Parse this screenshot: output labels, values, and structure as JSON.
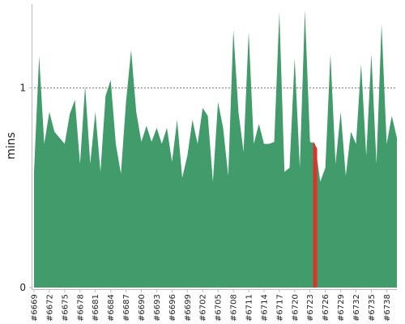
{
  "chart_data": {
    "type": "area",
    "title": "",
    "xlabel": "",
    "ylabel": "mins",
    "ylim": [
      0,
      1.4
    ],
    "yticks": [
      0,
      1
    ],
    "reference_line": {
      "value": 1,
      "style": "dotted",
      "color": "#777777"
    },
    "grid": false,
    "legend": "none",
    "colors": {
      "area": "#419b6b",
      "highlight": "#d9352b",
      "axis": "#bbbbbb",
      "tick_text": "#222222"
    },
    "x_categories": [
      "#6669",
      "#6670",
      "#6671",
      "#6672",
      "#6673",
      "#6674",
      "#6675",
      "#6676",
      "#6677",
      "#6678",
      "#6679",
      "#6680",
      "#6681",
      "#6682",
      "#6683",
      "#6684",
      "#6685",
      "#6686",
      "#6687",
      "#6688",
      "#6689",
      "#6690",
      "#6691",
      "#6692",
      "#6693",
      "#6694",
      "#6695",
      "#6696",
      "#6697",
      "#6698",
      "#6699",
      "#6700",
      "#6701",
      "#6702",
      "#6703",
      "#6704",
      "#6705",
      "#6706",
      "#6707",
      "#6708",
      "#6709",
      "#6710",
      "#6711",
      "#6712",
      "#6713",
      "#6714",
      "#6715",
      "#6716",
      "#6717",
      "#6718",
      "#6719",
      "#6720",
      "#6721",
      "#6722",
      "#6723",
      "#6724",
      "#6725",
      "#6726",
      "#6727",
      "#6728",
      "#6729",
      "#6730",
      "#6731",
      "#6732",
      "#6733",
      "#6734",
      "#6735",
      "#6736",
      "#6737",
      "#6738",
      "#6739",
      "#6740"
    ],
    "x_tick_labels": [
      "#6669",
      "#6672",
      "#6675",
      "#6678",
      "#6681",
      "#6684",
      "#6687",
      "#6690",
      "#6693",
      "#6696",
      "#6699",
      "#6702",
      "#6705",
      "#6708",
      "#6711",
      "#6714",
      "#6717",
      "#6720",
      "#6723",
      "#6726",
      "#6729",
      "#6732",
      "#6735",
      "#6738"
    ],
    "series": [
      {
        "values": [
          0.58,
          1.16,
          0.72,
          0.88,
          0.78,
          0.75,
          0.72,
          0.87,
          0.94,
          0.62,
          1.01,
          0.62,
          0.88,
          0.58,
          0.96,
          1.04,
          0.72,
          0.57,
          0.93,
          1.19,
          0.88,
          0.73,
          0.81,
          0.73,
          0.8,
          0.72,
          0.8,
          0.63,
          0.84,
          0.55,
          0.66,
          0.84,
          0.72,
          0.9,
          0.86,
          0.53,
          0.93,
          0.8,
          0.56,
          1.29,
          0.88,
          0.68,
          1.28,
          0.72,
          0.82,
          0.72,
          0.72,
          0.73,
          1.38,
          0.58,
          0.6,
          1.15,
          0.6,
          1.39,
          0.73,
          0.72,
          0.53,
          0.6,
          1.17,
          0.62,
          0.88,
          0.56,
          0.78,
          0.72,
          1.12,
          0.66,
          1.17,
          0.62,
          1.32,
          0.72,
          0.86,
          0.75
        ]
      }
    ],
    "highlight": {
      "category": "#6724"
    }
  }
}
